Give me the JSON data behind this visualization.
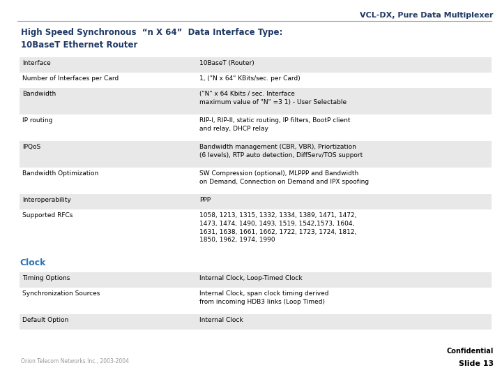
{
  "title_header": "VCL-DX, Pure Data Multiplexer",
  "slide_title_line1": "High Speed Synchronous  “n X 64”  Data Interface Type:",
  "slide_title_line2": "10BaseT Ethernet Router",
  "section_clock": "Clock",
  "table_rows": [
    {
      "label": "Interface",
      "value": "10BaseT (Router)",
      "shaded": true
    },
    {
      "label": "Number of Interfaces per Card",
      "value": "1, (\"N x 64\" KBits/sec. per Card)",
      "shaded": false
    },
    {
      "label": "Bandwidth",
      "value": "(\"N\" x 64 Kbits / sec. Interface\nmaximum value of \"N\" =3 1) - User Selectable",
      "shaded": true
    },
    {
      "label": "IP routing",
      "value": "RIP-I, RIP-II, static routing, IP filters, BootP client\nand relay, DHCP relay",
      "shaded": false
    },
    {
      "label": "IPQoS",
      "value": "Bandwidth management (CBR, VBR), Priortization\n(6 levels), RTP auto detection, DiffServ/TOS support",
      "shaded": true
    },
    {
      "label": "Bandwidth Optimization",
      "value": "SW Compression (optional), MLPPP and Bandwidth\non Demand, Connection on Demand and IPX spoofing",
      "shaded": false
    },
    {
      "label": "Interoperability",
      "value": "PPP",
      "shaded": true
    },
    {
      "label": "Supported RFCs",
      "value": "1058, 1213, 1315, 1332, 1334, 1389, 1471, 1472,\n1473, 1474, 1490, 1493, 1519, 1542,1573, 1604,\n1631, 1638, 1661, 1662, 1722, 1723, 1724, 1812,\n1850, 1962, 1974, 1990",
      "shaded": false
    }
  ],
  "clock_rows": [
    {
      "label": "Timing Options",
      "value": "Internal Clock, Loop-Timed Clock",
      "shaded": true
    },
    {
      "label": "Synchronization Sources",
      "value": "Internal Clock, span clock timing derived\nfrom incoming HDB3 links (Loop Timed)",
      "shaded": false
    },
    {
      "label": "Default Option",
      "value": "Internal Clock",
      "shaded": true
    }
  ],
  "footer_left": "Orion Telecom Networks Inc., 2003-2004",
  "footer_confidential": "Confidential",
  "footer_slide": "Slide 13",
  "bg_color": "#ffffff",
  "title_color": "#1f3864",
  "header_text_color": "#1f3864",
  "clock_color": "#2e74b5",
  "shaded_row_color": "#e8e8e8",
  "text_color": "#000000",
  "col_split": 0.375,
  "label_fontsize": 6.5,
  "value_fontsize": 6.5,
  "title_fontsize": 8.5,
  "header_fontsize": 8.0,
  "clock_fontsize": 9.0,
  "footer_fontsize": 5.5
}
